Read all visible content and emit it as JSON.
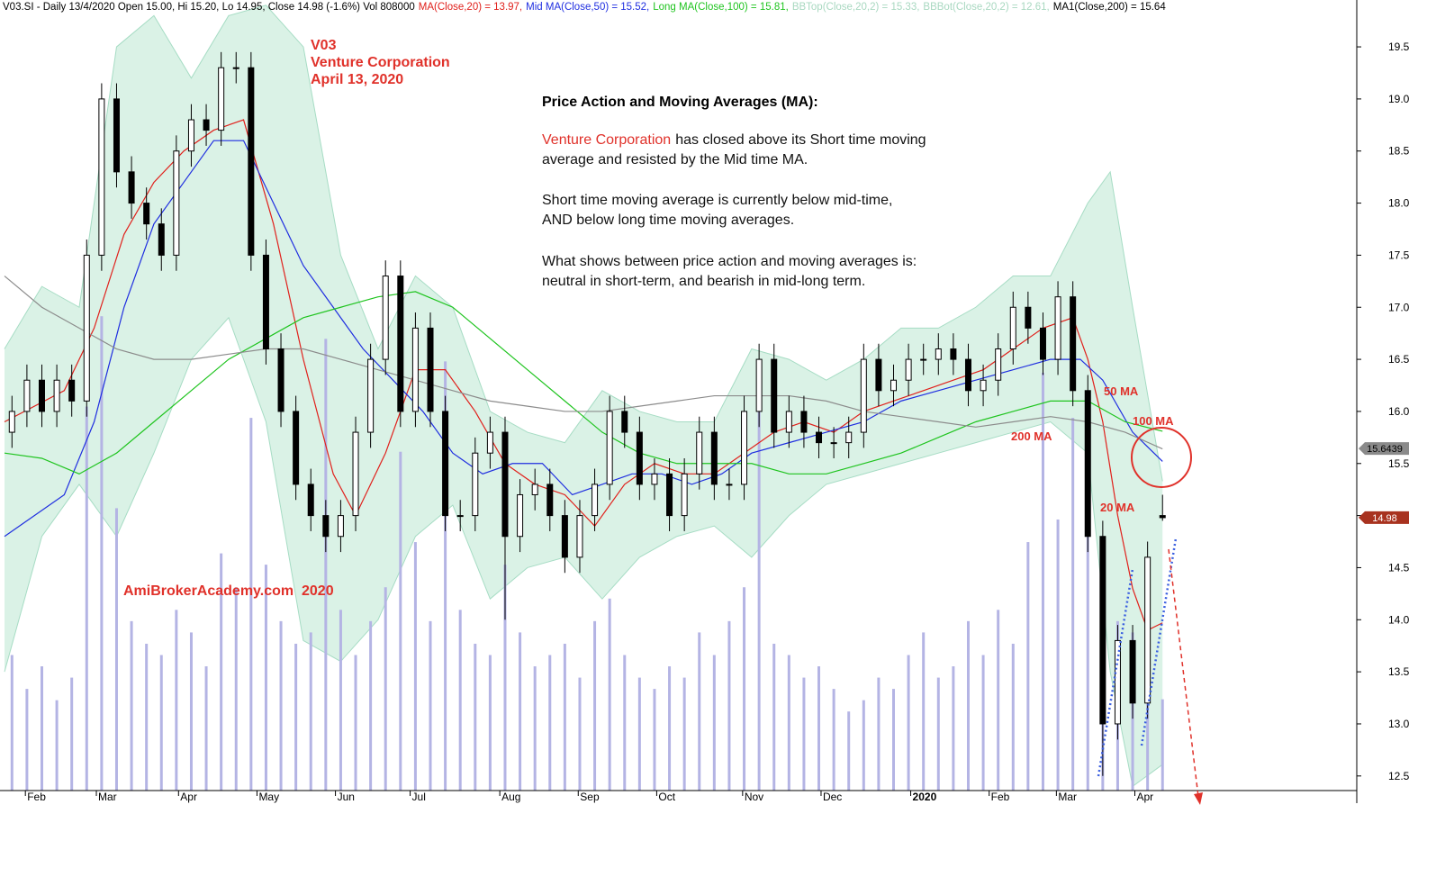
{
  "header": [
    {
      "text": "V03.SI - Daily 13/4/2020 Open 15.00, Hi 15.20, Lo 14.95, Close 14.98 (-1.6%) Vol 808000",
      "color": "#000000"
    },
    {
      "text": "MA(Close,20) = 13.97,",
      "color": "#e0201b"
    },
    {
      "text": "Mid MA(Close,50) = 15.52,",
      "color": "#1f2ee0"
    },
    {
      "text": "Long MA(Close,100) = 15.81,",
      "color": "#1fc41f"
    },
    {
      "text": "BBTop(Close,20,2) = 15.33,",
      "color": "#a8d8c0"
    },
    {
      "text": "BBBot(Close,20,2) = 12.61,",
      "color": "#a8d8c0"
    },
    {
      "text": "MA1(Close,200) = 15.64",
      "color": "#000000"
    }
  ],
  "chart_data": {
    "type": "candlestick",
    "x": [
      2,
      6,
      10,
      14,
      18,
      22,
      26,
      30,
      34,
      38,
      42,
      46,
      50,
      54,
      58,
      62,
      66,
      70,
      74,
      78,
      82,
      86,
      90,
      94,
      98,
      102,
      106,
      110,
      114,
      118,
      122,
      126,
      130,
      134,
      138,
      142,
      146,
      150,
      154,
      158,
      162,
      166,
      170,
      174,
      178,
      182,
      186,
      190,
      194,
      198,
      202,
      206,
      210,
      214,
      218,
      222,
      226,
      230,
      234,
      238,
      242,
      246,
      250,
      254,
      258,
      262,
      266,
      270,
      274,
      278,
      282,
      286,
      290,
      294,
      298,
      302,
      306,
      310
    ],
    "open": [
      15.8,
      16.0,
      16.3,
      16.0,
      16.3,
      16.1,
      17.5,
      19.0,
      18.3,
      18.0,
      17.8,
      17.5,
      18.5,
      18.8,
      18.7,
      19.3,
      19.3,
      17.5,
      16.6,
      16.0,
      15.3,
      15.0,
      14.8,
      15.0,
      15.8,
      16.5,
      17.3,
      16.0,
      16.8,
      16.0,
      15.0,
      15.0,
      15.6,
      15.8,
      14.8,
      15.2,
      15.3,
      15.0,
      14.6,
      15.0,
      15.3,
      16.0,
      15.8,
      15.3,
      15.4,
      15.0,
      15.4,
      15.8,
      15.3,
      15.3,
      16.0,
      16.5,
      15.8,
      16.0,
      15.8,
      15.7,
      15.7,
      15.8,
      16.5,
      16.2,
      16.3,
      16.5,
      16.5,
      16.6,
      16.5,
      16.2,
      16.3,
      16.6,
      17.0,
      16.8,
      16.5,
      17.1,
      16.2,
      14.8,
      13.0,
      13.8,
      13.2,
      15.0
    ],
    "high": [
      16.15,
      16.45,
      16.45,
      16.45,
      16.45,
      17.65,
      19.15,
      19.15,
      18.45,
      18.15,
      17.95,
      18.65,
      18.95,
      18.95,
      19.45,
      19.45,
      19.45,
      17.65,
      16.75,
      16.15,
      15.45,
      15.15,
      15.15,
      15.95,
      16.65,
      17.45,
      17.45,
      16.95,
      16.95,
      16.15,
      15.15,
      15.75,
      15.95,
      15.95,
      15.35,
      15.45,
      15.45,
      15.15,
      15.15,
      15.45,
      16.15,
      16.15,
      15.95,
      15.55,
      15.55,
      15.55,
      15.95,
      15.95,
      15.45,
      16.15,
      16.65,
      16.65,
      16.15,
      16.15,
      15.95,
      15.85,
      15.95,
      16.65,
      16.65,
      16.45,
      16.65,
      16.65,
      16.75,
      16.75,
      16.65,
      16.45,
      16.75,
      17.15,
      17.15,
      16.95,
      17.25,
      17.25,
      16.35,
      14.95,
      13.95,
      13.95,
      14.75,
      15.2
    ],
    "low": [
      15.65,
      15.85,
      15.85,
      15.85,
      15.95,
      15.95,
      17.35,
      18.15,
      17.85,
      17.65,
      17.35,
      17.35,
      18.35,
      18.55,
      18.55,
      19.15,
      17.35,
      16.45,
      15.85,
      15.15,
      14.85,
      14.65,
      14.65,
      14.85,
      15.65,
      16.35,
      15.85,
      15.85,
      15.85,
      14.85,
      14.85,
      14.85,
      15.45,
      14.0,
      14.65,
      15.05,
      14.85,
      14.45,
      14.45,
      14.85,
      15.15,
      15.65,
      15.15,
      15.15,
      14.85,
      14.85,
      15.25,
      15.15,
      15.15,
      15.15,
      15.85,
      15.65,
      15.65,
      15.65,
      15.55,
      15.55,
      15.55,
      15.65,
      16.05,
      16.05,
      16.15,
      16.35,
      16.35,
      16.35,
      16.05,
      16.05,
      16.15,
      16.45,
      16.65,
      16.35,
      16.35,
      16.05,
      14.65,
      12.5,
      12.85,
      13.05,
      13.05,
      14.95
    ],
    "close": [
      16.0,
      16.3,
      16.0,
      16.3,
      16.1,
      17.5,
      19.0,
      18.3,
      18.0,
      17.8,
      17.5,
      18.5,
      18.8,
      18.7,
      19.3,
      19.3,
      17.5,
      16.6,
      16.0,
      15.3,
      15.0,
      14.8,
      15.0,
      15.8,
      16.5,
      17.3,
      16.0,
      16.8,
      16.0,
      15.0,
      15.0,
      15.6,
      15.8,
      14.8,
      15.2,
      15.3,
      15.0,
      14.6,
      15.0,
      15.3,
      16.0,
      15.8,
      15.3,
      15.4,
      15.0,
      15.4,
      15.8,
      15.3,
      15.3,
      16.0,
      16.5,
      15.8,
      16.0,
      15.8,
      15.7,
      15.7,
      15.8,
      16.5,
      16.2,
      16.3,
      16.5,
      16.5,
      16.6,
      16.5,
      16.2,
      16.3,
      16.6,
      17.0,
      16.8,
      16.5,
      17.1,
      16.2,
      14.8,
      13.0,
      13.8,
      13.2,
      14.6,
      14.98
    ],
    "colors": {
      "up": "#ffffff",
      "down": "#000000",
      "outline": "#000000"
    },
    "volume": [
      1200000,
      900000,
      1100000,
      800000,
      1000000,
      3400000,
      4200000,
      2500000,
      1500000,
      1300000,
      1200000,
      1600000,
      1400000,
      1100000,
      2100000,
      1800000,
      3300000,
      2000000,
      1500000,
      1300000,
      1400000,
      4000000,
      1600000,
      1200000,
      1500000,
      1800000,
      3000000,
      2200000,
      1500000,
      3800000,
      1600000,
      1300000,
      1200000,
      2000000,
      1400000,
      1100000,
      1200000,
      1300000,
      1000000,
      1500000,
      1700000,
      1200000,
      1000000,
      900000,
      1100000,
      1000000,
      1400000,
      1200000,
      1500000,
      1800000,
      3600000,
      1300000,
      1200000,
      1000000,
      1100000,
      900000,
      700000,
      800000,
      1000000,
      900000,
      1200000,
      1400000,
      1000000,
      1100000,
      1500000,
      1200000,
      1600000,
      1300000,
      2200000,
      3700000,
      2400000,
      3300000,
      2600000,
      2000000,
      1500000,
      1400000,
      1100000,
      808000
    ],
    "volume_color": "#b4b4e4",
    "y3lim": [
      0,
      7000000
    ],
    "lines": [
      {
        "name": "20 MA",
        "color": "#e0201b",
        "x": [
          0,
          16,
          24,
          32,
          40,
          48,
          56,
          64,
          72,
          80,
          88,
          94,
          102,
          110,
          118,
          126,
          134,
          142,
          150,
          158,
          166,
          174,
          182,
          190,
          198,
          206,
          214,
          222,
          230,
          238,
          246,
          254,
          262,
          270,
          278,
          286,
          290,
          294,
          298,
          302,
          306,
          310
        ],
        "values": [
          15.9,
          16.2,
          16.8,
          17.7,
          18.2,
          18.5,
          18.7,
          18.8,
          17.8,
          16.5,
          15.4,
          15.0,
          15.6,
          16.4,
          16.4,
          16.0,
          15.5,
          15.3,
          15.2,
          14.9,
          15.3,
          15.5,
          15.4,
          15.4,
          15.6,
          15.8,
          15.9,
          15.8,
          16.0,
          16.1,
          16.2,
          16.3,
          16.4,
          16.6,
          16.8,
          16.9,
          16.5,
          15.9,
          15.0,
          14.3,
          13.9,
          13.97
        ]
      },
      {
        "name": "50 MA",
        "color": "#1f2ee0",
        "x": [
          0,
          16,
          24,
          32,
          40,
          48,
          56,
          64,
          72,
          80,
          88,
          96,
          104,
          112,
          120,
          128,
          136,
          144,
          152,
          160,
          168,
          176,
          184,
          192,
          200,
          210,
          220,
          230,
          240,
          250,
          260,
          270,
          280,
          288,
          294,
          302,
          310
        ],
        "values": [
          14.8,
          15.2,
          15.9,
          17.0,
          17.8,
          18.2,
          18.6,
          18.6,
          18.0,
          17.4,
          17.0,
          16.6,
          16.3,
          16.0,
          15.6,
          15.4,
          15.5,
          15.5,
          15.2,
          15.3,
          15.4,
          15.4,
          15.3,
          15.4,
          15.6,
          15.7,
          15.8,
          15.9,
          16.1,
          16.2,
          16.3,
          16.4,
          16.5,
          16.5,
          16.3,
          15.8,
          15.52
        ]
      },
      {
        "name": "100 MA",
        "color": "#1fc41f",
        "x": [
          0,
          10,
          20,
          30,
          40,
          50,
          60,
          70,
          80,
          90,
          100,
          110,
          120,
          130,
          140,
          150,
          160,
          170,
          180,
          190,
          200,
          210,
          220,
          230,
          240,
          250,
          260,
          270,
          280,
          290,
          300,
          310
        ],
        "values": [
          15.6,
          15.55,
          15.4,
          15.6,
          15.9,
          16.2,
          16.5,
          16.7,
          16.9,
          17.0,
          17.1,
          17.15,
          17.0,
          16.7,
          16.4,
          16.1,
          15.8,
          15.6,
          15.5,
          15.5,
          15.5,
          15.4,
          15.4,
          15.5,
          15.6,
          15.75,
          15.9,
          16.0,
          16.1,
          16.1,
          15.9,
          15.81
        ]
      },
      {
        "name": "200 MA",
        "color": "#8c8c8c",
        "x": [
          0,
          10,
          20,
          30,
          40,
          50,
          60,
          70,
          80,
          90,
          100,
          110,
          120,
          130,
          140,
          150,
          160,
          170,
          180,
          190,
          200,
          210,
          220,
          230,
          240,
          250,
          260,
          270,
          280,
          290,
          300,
          310
        ],
        "values": [
          17.3,
          17.0,
          16.8,
          16.6,
          16.5,
          16.5,
          16.55,
          16.6,
          16.6,
          16.5,
          16.4,
          16.3,
          16.2,
          16.1,
          16.05,
          16.0,
          16.0,
          16.05,
          16.1,
          16.15,
          16.15,
          16.15,
          16.1,
          16.0,
          15.95,
          15.9,
          15.85,
          15.9,
          15.95,
          15.9,
          15.8,
          15.64
        ]
      }
    ],
    "bands": {
      "color": "#cdeedd",
      "edge": "#a6dcc4",
      "x": [
        0,
        10,
        20,
        30,
        40,
        50,
        60,
        70,
        80,
        90,
        100,
        110,
        120,
        130,
        140,
        150,
        160,
        170,
        180,
        190,
        200,
        210,
        220,
        230,
        240,
        250,
        260,
        270,
        280,
        290,
        296,
        302,
        310
      ],
      "upper": [
        16.6,
        17.2,
        17.0,
        19.5,
        19.8,
        19.2,
        19.8,
        19.9,
        19.5,
        17.5,
        16.6,
        17.3,
        17.0,
        16.0,
        15.8,
        15.7,
        16.2,
        16.0,
        15.9,
        15.9,
        16.6,
        16.5,
        16.3,
        16.5,
        16.8,
        16.8,
        17.0,
        17.3,
        17.3,
        18.0,
        18.3,
        17.0,
        15.33
      ],
      "lower": [
        13.5,
        14.8,
        15.3,
        14.8,
        15.6,
        16.5,
        16.9,
        15.9,
        13.8,
        13.6,
        14.0,
        14.8,
        15.1,
        14.2,
        14.5,
        14.6,
        14.2,
        14.6,
        14.8,
        14.9,
        14.6,
        15.0,
        15.3,
        15.4,
        15.5,
        15.6,
        15.7,
        15.8,
        15.9,
        15.6,
        13.5,
        12.4,
        12.61
      ]
    },
    "xlim": [
      0,
      362
    ],
    "ylim": [
      12.36,
      19.95
    ],
    "xticks": [
      {
        "value": 8,
        "label": "Feb"
      },
      {
        "value": 27,
        "label": "Mar"
      },
      {
        "value": 49,
        "label": "Apr"
      },
      {
        "value": 70,
        "label": "May"
      },
      {
        "value": 91,
        "label": "Jun"
      },
      {
        "value": 111,
        "label": "Jul"
      },
      {
        "value": 135,
        "label": "Aug"
      },
      {
        "value": 156,
        "label": "Sep"
      },
      {
        "value": 177,
        "label": "Oct"
      },
      {
        "value": 200,
        "label": "Nov"
      },
      {
        "value": 221,
        "label": "Dec"
      },
      {
        "value": 245,
        "label": "2020"
      },
      {
        "value": 266,
        "label": "Feb"
      },
      {
        "value": 284,
        "label": "Mar"
      },
      {
        "value": 305,
        "label": "Apr"
      }
    ],
    "yticks": [
      12.5,
      {
        "value": 13,
        "label": "13.0"
      },
      13.5,
      {
        "value": 14,
        "label": "14.0"
      },
      14.5,
      {
        "value": 15,
        "label": "15.0"
      },
      15.5,
      {
        "value": 16,
        "label": "16.0"
      },
      16.5,
      {
        "value": 17,
        "label": "17.0"
      },
      17.5,
      {
        "value": 18,
        "label": "18.0"
      },
      18.5,
      {
        "value": 19,
        "label": "19.0"
      },
      19.5
    ],
    "price_markers": [
      {
        "value": 15.6439,
        "label": "15.6439",
        "color": "#8a8a8a",
        "text_color": "#000000"
      },
      {
        "value": 14.98,
        "label": "14.98",
        "color": "#a8321f",
        "text_color": "#ffffff"
      }
    ]
  },
  "annotations": {
    "symbol": "V03",
    "company": "Venture Corporation",
    "date": "April 13, 2020",
    "watermark": "AmiBrokerAcademy.com  2020",
    "commentary": {
      "title": "Price Action and Moving Averages (MA):",
      "highlight": "Venture Corporation",
      "lines": [
        "has closed above its Short time moving",
        "average and resisted by the Mid time MA.",
        "Short time moving average is currently below mid-time,",
        "AND below long time moving averages.",
        "What shows between price action and moving averages is:",
        "neutral in short-term, and bearish in mid-long term."
      ]
    }
  }
}
